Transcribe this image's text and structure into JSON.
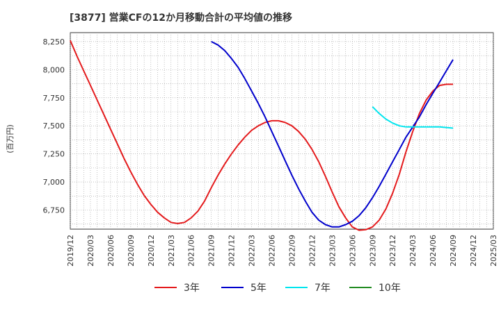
{
  "chart_data": {
    "type": "line",
    "title": "[3877]  営業CFの12か月移動合計の平均値の推移",
    "ylabel": "(百万円)",
    "xlabel": "",
    "x_ticks": [
      "2019/12",
      "2020/03",
      "2020/06",
      "2020/09",
      "2020/12",
      "2021/03",
      "2021/06",
      "2021/09",
      "2021/12",
      "2022/03",
      "2022/06",
      "2022/09",
      "2022/12",
      "2023/03",
      "2023/06",
      "2023/09",
      "2023/12",
      "2024/03",
      "2024/06",
      "2024/09",
      "2024/12",
      "2025/03"
    ],
    "y_ticks": [
      6750,
      7000,
      7250,
      7500,
      7750,
      8000,
      8250
    ],
    "y_tick_labels": [
      "6,750",
      "7,000",
      "7,250",
      "7,500",
      "7,750",
      "8,000",
      "8,250"
    ],
    "ylim": [
      6580,
      8330
    ],
    "grid": true,
    "legend_position": "bottom",
    "series": [
      {
        "name": "3年",
        "color": "#e41a1c",
        "x": [
          "2019/12",
          "2020/01",
          "2020/02",
          "2020/03",
          "2020/04",
          "2020/05",
          "2020/06",
          "2020/07",
          "2020/08",
          "2020/09",
          "2020/10",
          "2020/11",
          "2020/12",
          "2021/01",
          "2021/02",
          "2021/03",
          "2021/04",
          "2021/05",
          "2021/06",
          "2021/07",
          "2021/08",
          "2021/09",
          "2021/10",
          "2021/11",
          "2021/12",
          "2022/01",
          "2022/02",
          "2022/03",
          "2022/04",
          "2022/05",
          "2022/06",
          "2022/07",
          "2022/08",
          "2022/09",
          "2022/10",
          "2022/11",
          "2022/12",
          "2023/01",
          "2023/02",
          "2023/03",
          "2023/04",
          "2023/05",
          "2023/06",
          "2023/07",
          "2023/08",
          "2023/09",
          "2023/10",
          "2023/11",
          "2023/12",
          "2024/01",
          "2024/02",
          "2024/03",
          "2024/04",
          "2024/05",
          "2024/06",
          "2024/07",
          "2024/08",
          "2024/09"
        ],
        "values": [
          8260,
          8120,
          7990,
          7860,
          7730,
          7600,
          7470,
          7340,
          7210,
          7090,
          6980,
          6880,
          6800,
          6730,
          6680,
          6640,
          6630,
          6640,
          6680,
          6740,
          6830,
          6950,
          7060,
          7160,
          7250,
          7330,
          7400,
          7460,
          7500,
          7530,
          7545,
          7545,
          7530,
          7500,
          7450,
          7380,
          7290,
          7180,
          7050,
          6910,
          6780,
          6680,
          6600,
          6570,
          6575,
          6600,
          6660,
          6760,
          6900,
          7070,
          7270,
          7450,
          7610,
          7730,
          7810,
          7860,
          7870,
          7870
        ]
      },
      {
        "name": "5年",
        "color": "#0000cc",
        "x": [
          "2021/09",
          "2021/10",
          "2021/11",
          "2021/12",
          "2022/01",
          "2022/02",
          "2022/03",
          "2022/04",
          "2022/05",
          "2022/06",
          "2022/07",
          "2022/08",
          "2022/09",
          "2022/10",
          "2022/11",
          "2022/12",
          "2023/01",
          "2023/02",
          "2023/03",
          "2023/04",
          "2023/05",
          "2023/06",
          "2023/07",
          "2023/08",
          "2023/09",
          "2023/10",
          "2023/11",
          "2023/12",
          "2024/01",
          "2024/02",
          "2024/03",
          "2024/04",
          "2024/05",
          "2024/06",
          "2024/07",
          "2024/08",
          "2024/09"
        ],
        "values": [
          8250,
          8220,
          8170,
          8100,
          8020,
          7920,
          7810,
          7700,
          7580,
          7450,
          7320,
          7190,
          7060,
          6940,
          6830,
          6730,
          6660,
          6620,
          6600,
          6600,
          6620,
          6650,
          6700,
          6770,
          6860,
          6960,
          7070,
          7180,
          7290,
          7400,
          7490,
          7580,
          7690,
          7790,
          7890,
          7990,
          8090
        ]
      },
      {
        "name": "7年",
        "color": "#00e5ee",
        "x": [
          "2023/09",
          "2023/10",
          "2023/11",
          "2023/12",
          "2024/01",
          "2024/02",
          "2024/03",
          "2024/04",
          "2024/05",
          "2024/06",
          "2024/07",
          "2024/08",
          "2024/09"
        ],
        "values": [
          7670,
          7610,
          7560,
          7525,
          7500,
          7490,
          7490,
          7490,
          7490,
          7490,
          7490,
          7485,
          7480
        ]
      },
      {
        "name": "10年",
        "color": "#228b22",
        "x": [],
        "values": []
      }
    ]
  }
}
